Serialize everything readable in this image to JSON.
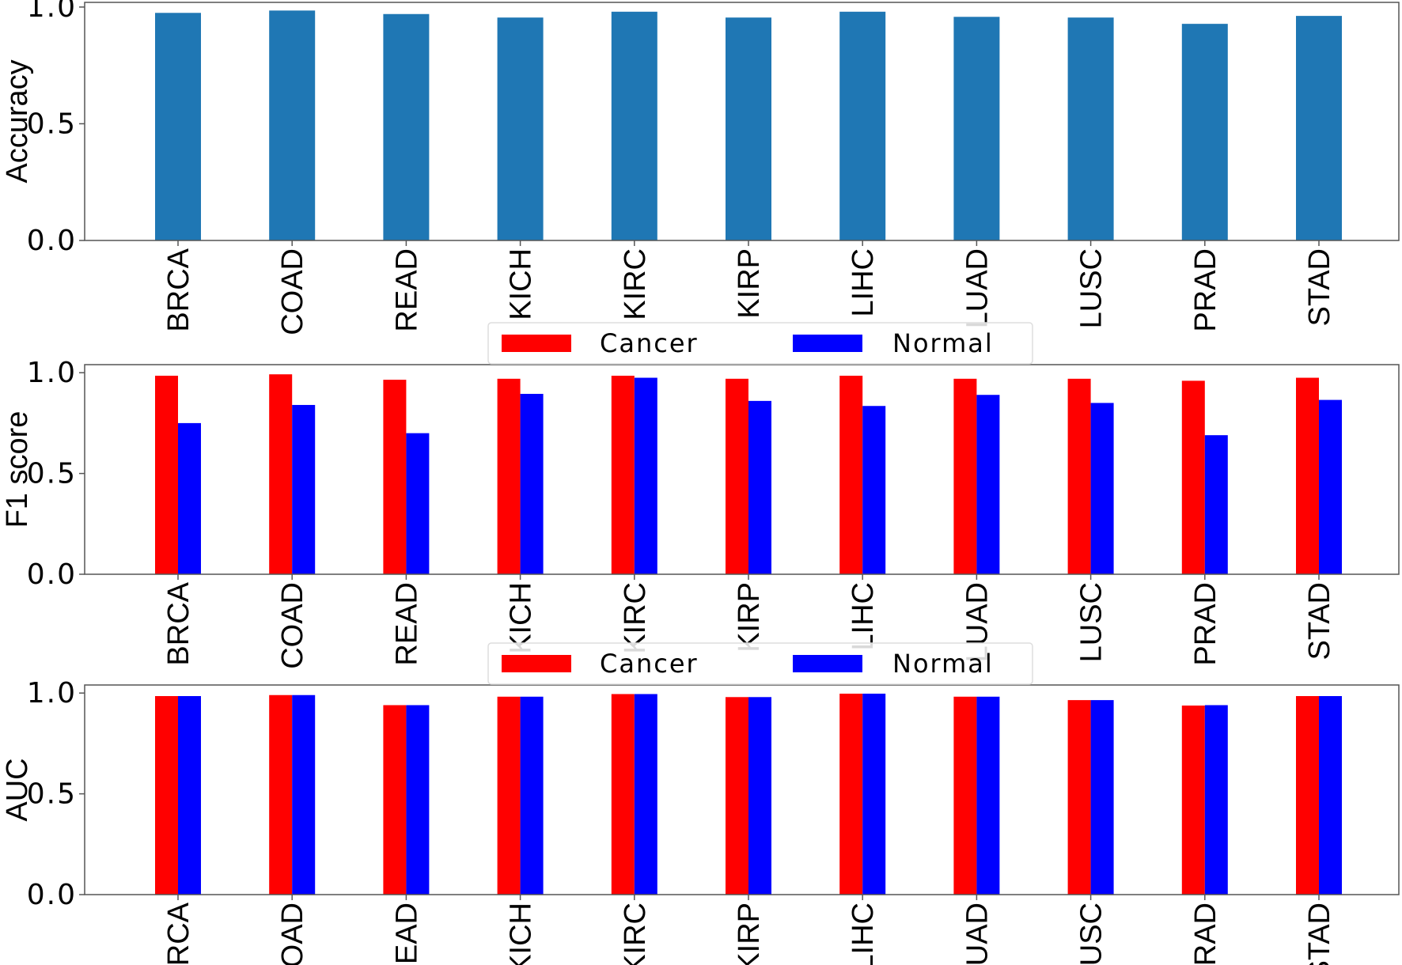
{
  "chart_data": [
    {
      "type": "bar",
      "categories": [
        "BRCA",
        "COAD",
        "READ",
        "KICH",
        "KIRC",
        "KIRP",
        "LIHC",
        "LUAD",
        "LUSC",
        "PRAD",
        "STAD"
      ],
      "series": [
        {
          "values": [
            0.975,
            0.985,
            0.97,
            0.955,
            0.98,
            0.955,
            0.98,
            0.958,
            0.955,
            0.928,
            0.962
          ],
          "color": "#1f77b4"
        }
      ],
      "title": "",
      "xlabel": "",
      "ylabel": "Accuracy",
      "ylim": [
        0,
        1.02
      ],
      "yticks": [
        "0.0",
        "0.5",
        "1.0"
      ],
      "grid": false,
      "legend": "none"
    },
    {
      "type": "bar",
      "categories": [
        "BRCA",
        "COAD",
        "READ",
        "KICH",
        "KIRC",
        "KIRP",
        "LIHC",
        "LUAD",
        "LUSC",
        "PRAD",
        "STAD"
      ],
      "series": [
        {
          "name": "Cancer",
          "values": [
            0.985,
            0.992,
            0.965,
            0.97,
            0.985,
            0.97,
            0.985,
            0.97,
            0.97,
            0.96,
            0.975
          ],
          "color": "#ff0000"
        },
        {
          "name": "Normal",
          "values": [
            0.75,
            0.84,
            0.7,
            0.895,
            0.975,
            0.86,
            0.835,
            0.89,
            0.85,
            0.69,
            0.865
          ],
          "color": "#0000ff"
        }
      ],
      "title": "",
      "xlabel": "",
      "ylabel": "F1 score",
      "ylim": [
        0,
        1.04
      ],
      "yticks": [
        "0.0",
        "0.5",
        "1.0"
      ],
      "grid": false,
      "legend": "top-center"
    },
    {
      "type": "bar",
      "categories": [
        "BRCA",
        "COAD",
        "READ",
        "KICH",
        "KIRC",
        "KIRP",
        "LIHC",
        "LUAD",
        "LUSC",
        "PRAD",
        "STAD"
      ],
      "series": [
        {
          "name": "Cancer",
          "values": [
            0.985,
            0.99,
            0.94,
            0.982,
            0.995,
            0.98,
            0.997,
            0.982,
            0.965,
            0.938,
            0.985
          ],
          "color": "#ff0000"
        },
        {
          "name": "Normal",
          "values": [
            0.985,
            0.99,
            0.94,
            0.982,
            0.995,
            0.98,
            0.997,
            0.982,
            0.965,
            0.94,
            0.985
          ],
          "color": "#0000ff"
        }
      ],
      "title": "",
      "xlabel": "",
      "ylabel": "AUC",
      "ylim": [
        0,
        1.04
      ],
      "yticks": [
        "0.0",
        "0.5",
        "1.0"
      ],
      "grid": false,
      "legend": "top-center"
    }
  ]
}
